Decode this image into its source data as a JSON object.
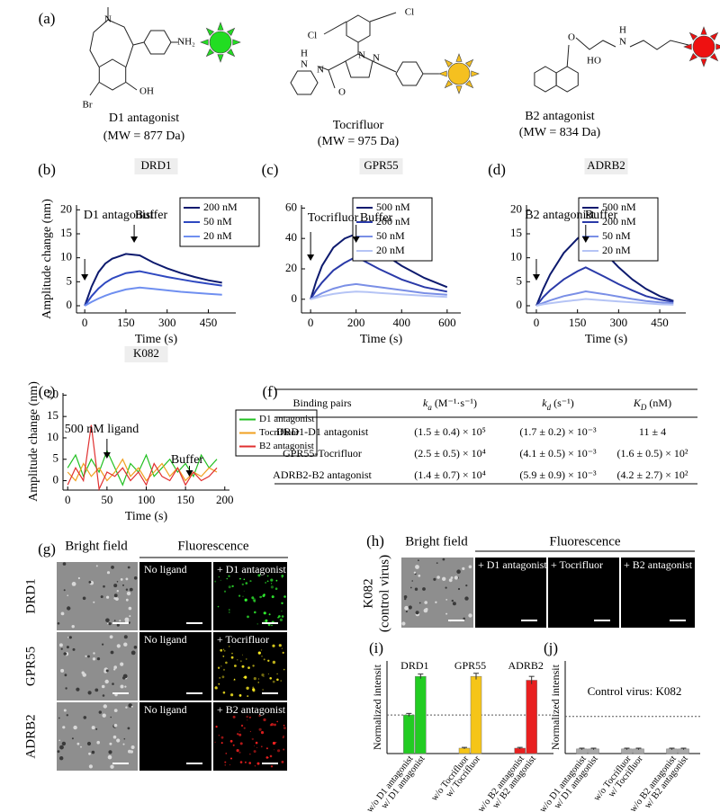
{
  "panel_labels": [
    "(a)",
    "(b)",
    "(c)",
    "(d)",
    "(e)",
    "(f)",
    "(g)",
    "(h)",
    "(i)",
    "(j)"
  ],
  "molecules": [
    {
      "name": "D1 antagonist",
      "mw": "(MW = 877 Da)",
      "atoms": [
        "N",
        "NH₂",
        "Br",
        "OH"
      ]
    },
    {
      "name": "Tocrifluor",
      "mw": "(MW = 975 Da)",
      "atoms": [
        "Cl",
        "Cl",
        "N",
        "N",
        "H",
        "N",
        "N",
        "O"
      ]
    },
    {
      "name": "B2 antagonist",
      "mw": "(MW = 834 Da)",
      "atoms": [
        "O",
        "HO",
        "H",
        "N"
      ]
    }
  ],
  "chart_data": [
    {
      "type": "line",
      "title": "DRD1",
      "xlabel": "Time (s)",
      "ylabel": "Amplitude change (nm)",
      "x": [
        0,
        25,
        50,
        75,
        100,
        150,
        200,
        250,
        300,
        350,
        400,
        450,
        500
      ],
      "series": [
        {
          "name": "200 nM",
          "color": "#0d1a6e",
          "values": [
            0,
            4,
            7,
            8.8,
            9.8,
            10.8,
            10.5,
            9,
            7.8,
            6.8,
            6,
            5.3,
            4.8
          ]
        },
        {
          "name": "50 nM",
          "color": "#2e48c0",
          "values": [
            0,
            2,
            3.6,
            4.8,
            5.7,
            6.8,
            7.2,
            6.6,
            6,
            5.5,
            5,
            4.6,
            4.2
          ]
        },
        {
          "name": "20 nM",
          "color": "#6f8ff0",
          "values": [
            0,
            0.8,
            1.5,
            2.1,
            2.6,
            3.4,
            3.8,
            3.5,
            3.2,
            2.9,
            2.7,
            2.5,
            2.3
          ]
        }
      ],
      "xlim": [
        -30,
        550
      ],
      "ylim": [
        -1.5,
        21
      ],
      "xticks": [
        0,
        150,
        300,
        450
      ],
      "yticks": [
        0,
        5,
        10,
        15,
        20
      ],
      "annotations": [
        {
          "text": "D1 antagonist",
          "x": 0
        },
        {
          "text": "Buffer",
          "x": 180
        }
      ]
    },
    {
      "type": "line",
      "title": "GPR55",
      "xlabel": "Time (s)",
      "x": [
        0,
        25,
        50,
        100,
        150,
        200,
        250,
        300,
        400,
        500,
        600
      ],
      "series": [
        {
          "name": "500 nM",
          "color": "#0d1a6e",
          "values": [
            0,
            12,
            22,
            34,
            40,
            43,
            38,
            32,
            22,
            14,
            8
          ]
        },
        {
          "name": "200 nM",
          "color": "#2a3aa8",
          "values": [
            0,
            6,
            11,
            19,
            24,
            28,
            24,
            20,
            13,
            8,
            5
          ]
        },
        {
          "name": "50 nM",
          "color": "#7a8fe6",
          "values": [
            0,
            2,
            4,
            7,
            9,
            10,
            9,
            8,
            6,
            4,
            3
          ]
        },
        {
          "name": "20 nM",
          "color": "#b5c4f5",
          "values": [
            0,
            1,
            2,
            3.5,
            4.5,
            5,
            4.7,
            4.2,
            3.2,
            2.3,
            1.5
          ]
        }
      ],
      "xlim": [
        -40,
        660
      ],
      "ylim": [
        -9,
        62
      ],
      "xticks": [
        0,
        200,
        400,
        600
      ],
      "yticks": [
        0,
        20,
        40,
        60
      ],
      "annotations": [
        {
          "text": "Tocrifluor",
          "x": 0
        },
        {
          "text": "Buffer",
          "x": 200
        }
      ]
    },
    {
      "type": "line",
      "title": "ADRB2",
      "xlabel": "Time (s)",
      "x": [
        0,
        25,
        50,
        100,
        150,
        180,
        250,
        300,
        350,
        400,
        450,
        500
      ],
      "series": [
        {
          "name": "500 nM",
          "color": "#0d1a6e",
          "values": [
            0,
            3.5,
            6.5,
            11,
            14,
            15.3,
            11,
            8,
            5.5,
            3.5,
            2,
            1
          ]
        },
        {
          "name": "200 nM",
          "color": "#2a3aa8",
          "values": [
            0,
            1.8,
            3.2,
            5.5,
            7.2,
            8,
            6,
            4.5,
            3.2,
            2,
            1.3,
            0.8
          ]
        },
        {
          "name": "50 nM",
          "color": "#7a8fe6",
          "values": [
            0,
            0.6,
            1.1,
            2,
            2.6,
            3,
            2.4,
            1.9,
            1.4,
            1,
            0.7,
            0.5
          ]
        },
        {
          "name": "20 nM",
          "color": "#b5c4f5",
          "values": [
            0,
            0.3,
            0.5,
            0.9,
            1.2,
            1.4,
            1.1,
            0.9,
            0.7,
            0.5,
            0.3,
            0.2
          ]
        }
      ],
      "xlim": [
        -36,
        545
      ],
      "ylim": [
        -1.5,
        21
      ],
      "xticks": [
        0,
        150,
        300,
        450
      ],
      "yticks": [
        0,
        5,
        10,
        15,
        20
      ],
      "annotations": [
        {
          "text": "B2 antagonist",
          "x": 0
        },
        {
          "text": "Buffer",
          "x": 180
        }
      ]
    },
    {
      "type": "line",
      "title": "K082",
      "xlabel": "Time (s)",
      "ylabel": "Amplitude change (nm)",
      "x": [
        0,
        10,
        20,
        30,
        40,
        50,
        60,
        70,
        80,
        90,
        100,
        110,
        120,
        130,
        140,
        150,
        160,
        170,
        180,
        190
      ],
      "series": [
        {
          "name": "D1 antagonist",
          "color": "#22c022",
          "values": [
            3,
            6,
            1,
            5,
            2,
            7,
            3,
            -1,
            4,
            2,
            6,
            1,
            3,
            5,
            2,
            4,
            1,
            6,
            3,
            5
          ]
        },
        {
          "name": "Tocrifluor",
          "color": "#f0a020",
          "values": [
            2,
            0,
            4,
            1,
            3,
            0,
            2,
            5,
            1,
            3,
            0,
            2,
            4,
            1,
            3,
            0,
            2,
            1,
            3,
            2
          ]
        },
        {
          "name": "B2 antagonist",
          "color": "#e03030",
          "values": [
            -1,
            3,
            0,
            13,
            -2,
            2,
            1,
            3,
            0,
            2,
            -1,
            4,
            1,
            0,
            3,
            -1,
            2,
            0,
            1,
            3
          ]
        }
      ],
      "xlim": [
        -6,
        206
      ],
      "ylim": [
        -2.2,
        20.5
      ],
      "xticks": [
        0,
        50,
        100,
        150,
        200
      ],
      "yticks": [
        0,
        5,
        10,
        15,
        20
      ],
      "annotations": [
        {
          "text": "500 nM ligand",
          "x": 50
        },
        {
          "text": "Buffer",
          "x": 155
        }
      ]
    },
    {
      "type": "bar",
      "ylabel": "Normalized intensit",
      "categories": [
        "w/o D1 antagonist",
        "w/ D1 antagonist",
        "w/o Tocrifluor",
        "w/ Tocrifluor",
        "w/o B2 antagonist",
        "w/ B2 antagonist"
      ],
      "group_labels": [
        "DRD1",
        "GPR55",
        "ADRB2"
      ],
      "values": [
        0.5,
        1.0,
        0.07,
        1.0,
        0.07,
        0.95
      ],
      "errors": [
        0.02,
        0.03,
        0.01,
        0.04,
        0.01,
        0.05
      ],
      "colors": [
        "#22cc22",
        "#22cc22",
        "#f5c518",
        "#f5c518",
        "#e82020",
        "#e82020"
      ],
      "reference": 0.5,
      "ylim": [
        0,
        1.2
      ]
    },
    {
      "type": "bar",
      "ylabel": "Normalized intensit",
      "annotation": "Control virus: K082",
      "categories": [
        "w/o D1 antagonist",
        "w/ D1 antagonist",
        "w/o Tocrifluor",
        "w/ Tocrifluor",
        "w/o B2 antagonist",
        "w/ B2 antagonist"
      ],
      "values": [
        0.06,
        0.06,
        0.06,
        0.06,
        0.06,
        0.06
      ],
      "errors": [
        0.01,
        0.01,
        0.01,
        0.01,
        0.01,
        0.01
      ],
      "colors": [
        "#aaaaaa",
        "#aaaaaa",
        "#aaaaaa",
        "#aaaaaa",
        "#aaaaaa",
        "#aaaaaa"
      ],
      "reference": 0.48,
      "ylim": [
        0,
        1.2
      ]
    }
  ],
  "table": {
    "header": [
      "Binding pairs",
      {
        "symbol": "k",
        "sub": "a",
        "unit": " (M⁻¹·s⁻¹)"
      },
      {
        "symbol": "k",
        "sub": "d",
        "unit": " (s⁻¹)"
      },
      {
        "symbol": "K",
        "sub": "D",
        "unit": " (nM)"
      }
    ],
    "rows": [
      [
        "DRD1-D1 antagonist",
        "(1.5 ± 0.4) × 10⁵",
        "(1.7 ± 0.2) × 10⁻³",
        "11 ± 4"
      ],
      [
        "GPR55-Tocrifluor",
        "(2.5 ± 0.5) × 10⁴",
        "(4.1 ± 0.5) × 10⁻³",
        "(1.6 ± 0.5) × 10²"
      ],
      [
        "ADRB2-B2 antagonist",
        "(1.4 ± 0.7) × 10⁴",
        "(5.9 ± 0.9) × 10⁻³",
        "(4.2 ± 2.7) × 10²"
      ]
    ]
  },
  "microscopy_g": {
    "headers": [
      "Bright field",
      "Fluorescence"
    ],
    "rows": [
      {
        "label": "DRD1",
        "control": "No ligand",
        "treated": "+ D1 antagonist"
      },
      {
        "label": "GPR55",
        "control": "No ligand",
        "treated": "+ Tocrifluor"
      },
      {
        "label": "ADRB2",
        "control": "No ligand",
        "treated": "+ B2 antagonist"
      }
    ]
  },
  "microscopy_h": {
    "headers": [
      "Bright field",
      "Fluorescence"
    ],
    "row_label": [
      "K082",
      "(control virus)"
    ],
    "columns": [
      "+ D1 antagonist",
      "+ Tocrifluor",
      "+ B2 antagonist"
    ]
  }
}
